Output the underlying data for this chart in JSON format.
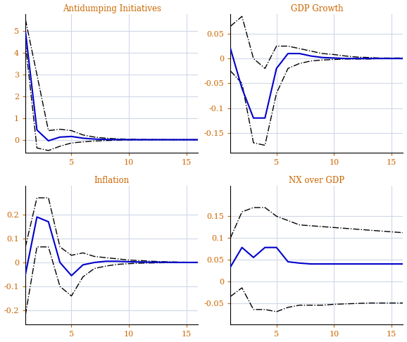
{
  "title_color": "#cc6600",
  "tick_color": "#cc6600",
  "line_color_main": "#0000cc",
  "line_color_ci": "#000000",
  "background": "#ffffff",
  "grid_color": "#d0d8e8",
  "titles": [
    "Antidumping Initiatives",
    "GDP Growth",
    "Inflation",
    "NX over GDP"
  ],
  "ad_x": [
    1,
    2,
    3,
    4,
    5,
    6,
    7,
    8,
    9,
    10,
    11,
    12,
    13,
    14,
    15,
    16
  ],
  "ad_main": [
    5.0,
    0.45,
    -0.05,
    0.12,
    0.15,
    0.07,
    0.03,
    0.01,
    0.005,
    0.002,
    0.001,
    0.001,
    0.001,
    0.0,
    0.0,
    0.0
  ],
  "ad_upper": [
    5.55,
    3.0,
    0.42,
    0.48,
    0.42,
    0.22,
    0.12,
    0.07,
    0.04,
    0.02,
    0.01,
    0.005,
    0.003,
    0.001,
    0.0,
    0.0
  ],
  "ad_lower": [
    4.45,
    -0.38,
    -0.5,
    -0.3,
    -0.15,
    -0.1,
    -0.06,
    -0.04,
    -0.02,
    -0.01,
    -0.005,
    -0.003,
    -0.001,
    -0.001,
    0.0,
    0.0
  ],
  "ad_ylim": [
    -0.6,
    5.8
  ],
  "ad_yticks": [
    0,
    1,
    2,
    3,
    4,
    5
  ],
  "gdp_x": [
    1,
    2,
    3,
    4,
    5,
    6,
    7,
    8,
    9,
    10,
    11,
    12,
    13,
    14,
    15,
    16
  ],
  "gdp_main": [
    0.02,
    -0.06,
    -0.12,
    -0.12,
    -0.02,
    0.01,
    0.01,
    0.005,
    0.002,
    0.001,
    0.0,
    0.0,
    0.0,
    0.0,
    0.0,
    0.0
  ],
  "gdp_upper": [
    0.065,
    0.085,
    0.0,
    -0.02,
    0.025,
    0.025,
    0.02,
    0.015,
    0.01,
    0.008,
    0.005,
    0.003,
    0.002,
    0.001,
    0.001,
    0.001
  ],
  "gdp_lower": [
    -0.025,
    -0.05,
    -0.17,
    -0.175,
    -0.07,
    -0.02,
    -0.01,
    -0.005,
    -0.003,
    -0.002,
    -0.001,
    -0.001,
    -0.001,
    0.0,
    0.0,
    0.0
  ],
  "gdp_ylim": [
    -0.19,
    0.09
  ],
  "gdp_yticks": [
    -0.15,
    -0.1,
    -0.05,
    0.0,
    0.05
  ],
  "inf_x": [
    1,
    2,
    3,
    4,
    5,
    6,
    7,
    8,
    9,
    10,
    11,
    12,
    13,
    14,
    15,
    16
  ],
  "inf_main": [
    -0.05,
    0.19,
    0.17,
    0.0,
    -0.055,
    -0.01,
    0.0,
    0.005,
    0.005,
    0.003,
    0.002,
    0.001,
    0.001,
    0.0,
    0.0,
    0.0
  ],
  "inf_upper": [
    0.065,
    0.27,
    0.27,
    0.065,
    0.03,
    0.04,
    0.025,
    0.02,
    0.015,
    0.01,
    0.008,
    0.005,
    0.003,
    0.002,
    0.001,
    0.001
  ],
  "inf_lower": [
    -0.22,
    0.065,
    0.065,
    -0.1,
    -0.14,
    -0.06,
    -0.025,
    -0.015,
    -0.008,
    -0.005,
    -0.003,
    -0.002,
    -0.001,
    -0.001,
    0.0,
    0.0
  ],
  "inf_ylim": [
    -0.26,
    0.32
  ],
  "inf_yticks": [
    -0.2,
    -0.1,
    0.0,
    0.1,
    0.2
  ],
  "nx_x": [
    1,
    2,
    3,
    4,
    5,
    6,
    7,
    8,
    9,
    10,
    11,
    12,
    13,
    14,
    15,
    16
  ],
  "nx_main": [
    0.033,
    0.078,
    0.055,
    0.078,
    0.078,
    0.045,
    0.042,
    0.04,
    0.04,
    0.04,
    0.04,
    0.04,
    0.04,
    0.04,
    0.04,
    0.04
  ],
  "nx_upper": [
    0.1,
    0.16,
    0.17,
    0.17,
    0.15,
    0.14,
    0.13,
    0.128,
    0.126,
    0.124,
    0.122,
    0.12,
    0.118,
    0.116,
    0.114,
    0.112
  ],
  "nx_lower": [
    -0.035,
    -0.015,
    -0.065,
    -0.065,
    -0.07,
    -0.06,
    -0.055,
    -0.055,
    -0.055,
    -0.053,
    -0.052,
    -0.051,
    -0.05,
    -0.05,
    -0.05,
    -0.05
  ],
  "nx_ylim": [
    -0.1,
    0.22
  ],
  "nx_yticks": [
    -0.05,
    0.0,
    0.05,
    0.1,
    0.15
  ]
}
